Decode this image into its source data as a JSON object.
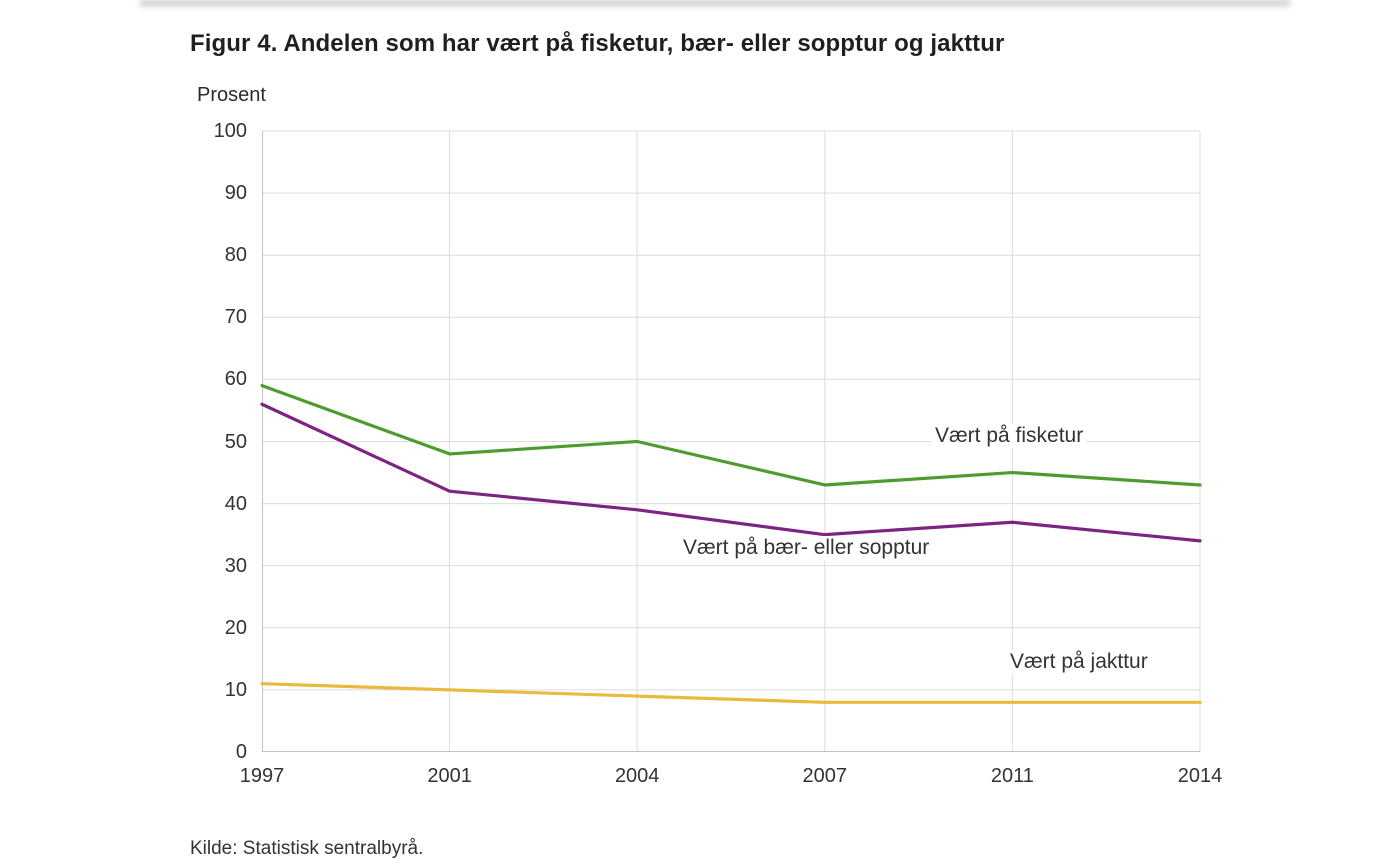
{
  "figure": {
    "title": "Figur 4. Andelen som har vært på fisketur, bær- eller sopptur og jakttur",
    "y_unit": "Prosent",
    "source": "Kilde: Statistisk sentralbyrå."
  },
  "chart_data": {
    "type": "line",
    "title": "Figur 4. Andelen som har vært på fisketur, bær- eller sopptur og jakttur",
    "xlabel": "",
    "ylabel": "Prosent",
    "categories": [
      "1997",
      "2001",
      "2004",
      "2007",
      "2011",
      "2014"
    ],
    "series": [
      {
        "name": "Vært på fisketur",
        "color": "#4e9b2f",
        "values": [
          59,
          48,
          50,
          43,
          45,
          43
        ]
      },
      {
        "name": "Vært på bær- eller sopptur",
        "color": "#7d2483",
        "values": [
          56,
          42,
          39,
          35,
          37,
          34
        ]
      },
      {
        "name": "Vært på jakttur",
        "color": "#e9ba3d",
        "values": [
          11,
          10,
          9,
          8,
          8,
          8
        ]
      }
    ],
    "ylim": [
      0,
      100
    ],
    "ytick_step": 10,
    "grid": true,
    "legend_position": "inline-annotations",
    "colors": {
      "grid": "#dcdcdc",
      "axis": "#c2c2c2",
      "text": "#333333"
    }
  }
}
